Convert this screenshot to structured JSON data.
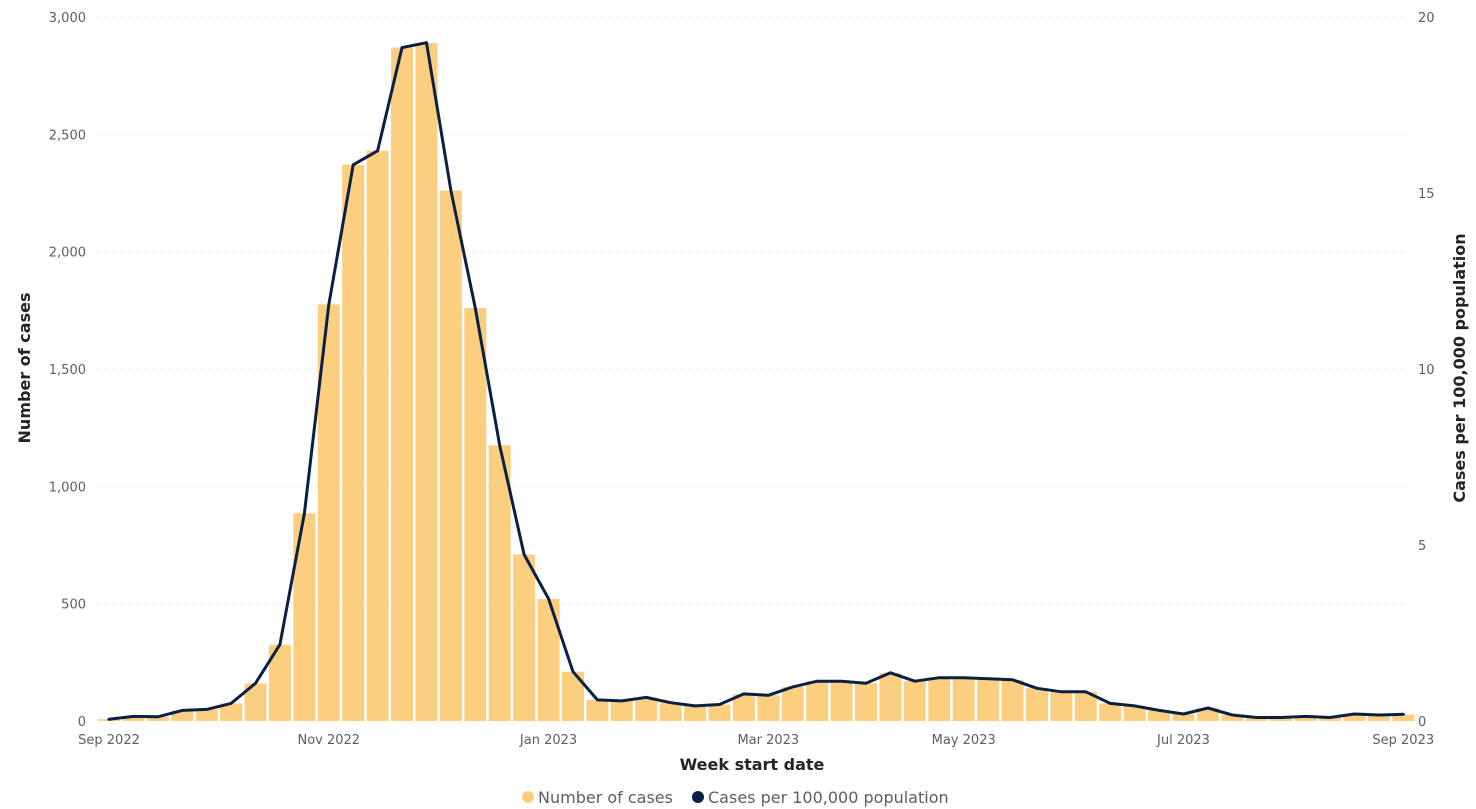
{
  "chart_data": {
    "type": "bar",
    "combo": "bar + line (dual axis)",
    "title": "",
    "xlabel": "Week start date",
    "ylabel": "Number of cases",
    "y2label": "Cases per 100,000 population",
    "ylim": [
      0,
      3000
    ],
    "y2lim": [
      0,
      20
    ],
    "yticks": [
      "0",
      "500",
      "1,000",
      "1,500",
      "2,000",
      "2,500",
      "3,000"
    ],
    "y2ticks": [
      "0",
      "5",
      "10",
      "15",
      "20"
    ],
    "xticks": [
      "Sep 2022",
      "Nov 2022",
      "Jan 2023",
      "Mar 2023",
      "May 2023",
      "Jul 2023",
      "Sep 2023"
    ],
    "grid": true,
    "legend_position": "bottom-center",
    "colors": {
      "bars": "#FCCF80",
      "line": "#0B1F44"
    },
    "categories": [
      "2022-08-29",
      "2022-09-05",
      "2022-09-12",
      "2022-09-19",
      "2022-09-26",
      "2022-10-03",
      "2022-10-10",
      "2022-10-17",
      "2022-10-24",
      "2022-10-31",
      "2022-11-07",
      "2022-11-14",
      "2022-11-21",
      "2022-11-28",
      "2022-12-05",
      "2022-12-12",
      "2022-12-19",
      "2022-12-26",
      "2023-01-02",
      "2023-01-09",
      "2023-01-16",
      "2023-01-23",
      "2023-01-30",
      "2023-02-06",
      "2023-02-13",
      "2023-02-20",
      "2023-02-27",
      "2023-03-06",
      "2023-03-13",
      "2023-03-20",
      "2023-03-27",
      "2023-04-03",
      "2023-04-10",
      "2023-04-17",
      "2023-04-24",
      "2023-05-01",
      "2023-05-08",
      "2023-05-15",
      "2023-05-22",
      "2023-05-29",
      "2023-06-05",
      "2023-06-12",
      "2023-06-19",
      "2023-06-26",
      "2023-07-03",
      "2023-07-10",
      "2023-07-17",
      "2023-07-24",
      "2023-07-31",
      "2023-08-07",
      "2023-08-14",
      "2023-08-21",
      "2023-08-28",
      "2023-09-04"
    ],
    "series": [
      {
        "name": "Number of cases",
        "type": "bar",
        "axis": "left",
        "values": [
          8,
          20,
          18,
          45,
          50,
          75,
          160,
          325,
          885,
          1775,
          2370,
          2430,
          2870,
          2890,
          2260,
          1760,
          1175,
          710,
          520,
          210,
          90,
          85,
          100,
          78,
          65,
          70,
          115,
          110,
          145,
          170,
          170,
          160,
          205,
          170,
          185,
          185,
          180,
          175,
          140,
          125,
          125,
          75,
          65,
          45,
          30,
          55,
          25,
          15,
          15,
          20,
          15,
          30,
          25,
          28
        ],
        "tooltip_unused": ""
      },
      {
        "name": "Cases per 100,000 population",
        "type": "line",
        "axis": "right",
        "values": [
          0.05,
          0.13,
          0.12,
          0.3,
          0.33,
          0.5,
          1.07,
          2.17,
          5.9,
          11.83,
          15.8,
          16.2,
          19.13,
          19.27,
          15.07,
          11.73,
          7.83,
          4.73,
          3.47,
          1.4,
          0.6,
          0.57,
          0.67,
          0.52,
          0.43,
          0.47,
          0.77,
          0.73,
          0.97,
          1.13,
          1.13,
          1.07,
          1.37,
          1.13,
          1.23,
          1.23,
          1.2,
          1.17,
          0.93,
          0.83,
          0.83,
          0.5,
          0.43,
          0.3,
          0.2,
          0.37,
          0.17,
          0.1,
          0.1,
          0.13,
          0.1,
          0.2,
          0.17,
          0.19
        ]
      }
    ]
  }
}
